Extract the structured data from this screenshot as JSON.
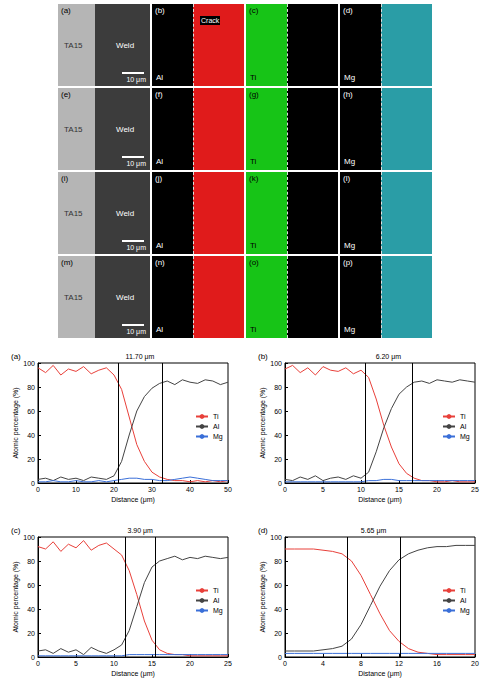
{
  "image_panels": {
    "rows": [
      [
        {
          "label": "(a)",
          "kind": "SEM",
          "left_text": "TA15",
          "right_text": "Weld",
          "scale_bar": "10 μm"
        },
        {
          "label": "(b)",
          "kind": "map",
          "element": "Al",
          "color": "#e01b1b",
          "side": "right",
          "annotation": "Crack"
        },
        {
          "label": "(c)",
          "kind": "map",
          "element": "Ti",
          "color": "#17c417",
          "side": "left"
        },
        {
          "label": "(d)",
          "kind": "map",
          "element": "Mg",
          "color": "#2a9da6",
          "side": "right"
        }
      ],
      [
        {
          "label": "(e)",
          "kind": "SEM",
          "left_text": "TA15",
          "right_text": "Weld",
          "scale_bar": "10 μm"
        },
        {
          "label": "(f)",
          "kind": "map",
          "element": "Al",
          "color": "#e01b1b",
          "side": "right"
        },
        {
          "label": "(g)",
          "kind": "map",
          "element": "Ti",
          "color": "#17c417",
          "side": "left"
        },
        {
          "label": "(h)",
          "kind": "map",
          "element": "Mg",
          "color": "#2a9da6",
          "side": "right"
        }
      ],
      [
        {
          "label": "(i)",
          "kind": "SEM",
          "left_text": "TA15",
          "right_text": "Weld",
          "scale_bar": "10 μm"
        },
        {
          "label": "(j)",
          "kind": "map",
          "element": "Al",
          "color": "#e01b1b",
          "side": "right"
        },
        {
          "label": "(k)",
          "kind": "map",
          "element": "Ti",
          "color": "#17c417",
          "side": "left"
        },
        {
          "label": "(l)",
          "kind": "map",
          "element": "Mg",
          "color": "#2a9da6",
          "side": "right"
        }
      ],
      [
        {
          "label": "(m)",
          "kind": "SEM",
          "left_text": "TA15",
          "right_text": "Weld",
          "scale_bar": "10 μm"
        },
        {
          "label": "(n)",
          "kind": "map",
          "element": "Al",
          "color": "#e01b1b",
          "side": "right"
        },
        {
          "label": "(o)",
          "kind": "map",
          "element": "Ti",
          "color": "#17c417",
          "side": "left"
        },
        {
          "label": "(p)",
          "kind": "map",
          "element": "Mg",
          "color": "#2a9da6",
          "side": "right"
        }
      ]
    ]
  },
  "chart_data": [
    {
      "type": "line",
      "title": "(a)",
      "xlabel": "Distance (μm)",
      "ylabel": "Atomic percentage (%)",
      "x": [
        0,
        2,
        4,
        6,
        8,
        10,
        12,
        14,
        16,
        18,
        20,
        22,
        24,
        26,
        28,
        30,
        32,
        34,
        36,
        38,
        40,
        42,
        44,
        46,
        48,
        50
      ],
      "series": [
        {
          "name": "Ti",
          "color": "#e8403a",
          "values": [
            96,
            92,
            98,
            90,
            95,
            93,
            97,
            91,
            94,
            96,
            90,
            78,
            55,
            32,
            18,
            9,
            5,
            3,
            2,
            2,
            1,
            2,
            1,
            2,
            1,
            2
          ]
        },
        {
          "name": "Al",
          "color": "#444444",
          "values": [
            3,
            4,
            2,
            5,
            3,
            4,
            2,
            5,
            4,
            3,
            6,
            18,
            40,
            60,
            72,
            79,
            83,
            85,
            82,
            86,
            84,
            83,
            86,
            85,
            82,
            84
          ]
        },
        {
          "name": "Mg",
          "color": "#3a6fd8",
          "values": [
            1,
            1,
            2,
            1,
            1,
            2,
            1,
            1,
            2,
            1,
            2,
            3,
            4,
            4,
            3,
            3,
            2,
            2,
            3,
            4,
            5,
            4,
            3,
            2,
            2,
            2
          ]
        }
      ],
      "xlim": [
        0,
        50
      ],
      "xticks": [
        0,
        10,
        20,
        30,
        40,
        50
      ],
      "ylim": [
        0,
        100
      ],
      "yticks": [
        0,
        20,
        40,
        60,
        80,
        100
      ],
      "grid": false,
      "legend": "right",
      "annotations": [
        {
          "text": "11.70 μm",
          "x": [
            21,
            32.7
          ]
        }
      ]
    },
    {
      "type": "line",
      "title": "(b)",
      "xlabel": "Distance (μm)",
      "ylabel": "Atomic percentage (%)",
      "x": [
        0,
        1,
        2,
        3,
        4,
        5,
        6,
        7,
        8,
        9,
        10,
        11,
        12,
        13,
        14,
        15,
        16,
        17,
        18,
        19,
        20,
        21,
        22,
        23,
        24,
        25
      ],
      "series": [
        {
          "name": "Ti",
          "color": "#e8403a",
          "values": [
            95,
            98,
            92,
            96,
            90,
            97,
            94,
            93,
            96,
            91,
            94,
            88,
            70,
            48,
            30,
            16,
            8,
            4,
            2,
            2,
            1,
            1,
            2,
            1,
            1,
            1
          ]
        },
        {
          "name": "Al",
          "color": "#444444",
          "values": [
            3,
            2,
            5,
            3,
            6,
            2,
            4,
            5,
            3,
            6,
            4,
            9,
            26,
            46,
            62,
            74,
            80,
            84,
            85,
            83,
            86,
            85,
            84,
            86,
            85,
            84
          ]
        },
        {
          "name": "Mg",
          "color": "#3a6fd8",
          "values": [
            1,
            1,
            1,
            1,
            1,
            1,
            1,
            1,
            1,
            1,
            1,
            2,
            2,
            3,
            3,
            2,
            2,
            2,
            2,
            2,
            2,
            2,
            2,
            2,
            2,
            2
          ]
        }
      ],
      "xlim": [
        0,
        25
      ],
      "xticks": [
        0,
        5,
        10,
        15,
        20,
        25
      ],
      "ylim": [
        0,
        100
      ],
      "yticks": [
        0,
        20,
        40,
        60,
        80,
        100
      ],
      "grid": false,
      "legend": "right",
      "annotations": [
        {
          "text": "6.20 μm",
          "x": [
            10.5,
            16.7
          ]
        }
      ]
    },
    {
      "type": "line",
      "title": "(c)",
      "xlabel": "Distance (μm)",
      "ylabel": "Atomic percentage (%)",
      "x": [
        0,
        1,
        2,
        3,
        4,
        5,
        6,
        7,
        8,
        9,
        10,
        11,
        12,
        13,
        14,
        15,
        16,
        17,
        18,
        19,
        20,
        21,
        22,
        23,
        24,
        25
      ],
      "series": [
        {
          "name": "Ti",
          "color": "#e8403a",
          "values": [
            92,
            90,
            96,
            88,
            94,
            91,
            97,
            89,
            93,
            95,
            90,
            85,
            72,
            52,
            30,
            14,
            6,
            3,
            2,
            2,
            1,
            1,
            1,
            1,
            1,
            1
          ]
        },
        {
          "name": "Al",
          "color": "#444444",
          "values": [
            5,
            6,
            3,
            7,
            4,
            6,
            2,
            8,
            5,
            3,
            6,
            10,
            22,
            42,
            62,
            75,
            80,
            82,
            84,
            81,
            83,
            82,
            84,
            83,
            82,
            83
          ]
        },
        {
          "name": "Mg",
          "color": "#3a6fd8",
          "values": [
            1,
            1,
            1,
            1,
            1,
            1,
            1,
            1,
            1,
            1,
            1,
            1,
            2,
            2,
            2,
            2,
            2,
            2,
            2,
            2,
            2,
            2,
            2,
            2,
            2,
            2
          ]
        }
      ],
      "xlim": [
        0,
        25
      ],
      "xticks": [
        0,
        5,
        10,
        15,
        20,
        25
      ],
      "ylim": [
        0,
        100
      ],
      "yticks": [
        0,
        20,
        40,
        60,
        80,
        100
      ],
      "grid": false,
      "legend": "right",
      "annotations": [
        {
          "text": "3.90 μm",
          "x": [
            11.5,
            15.4
          ]
        }
      ]
    },
    {
      "type": "line",
      "title": "(d)",
      "xlabel": "Distance (μm)",
      "ylabel": "Atomic percentage (%)",
      "x": [
        0,
        1,
        2,
        3,
        4,
        5,
        6,
        7,
        8,
        9,
        10,
        11,
        12,
        13,
        14,
        15,
        16,
        17,
        18,
        19,
        20
      ],
      "series": [
        {
          "name": "Ti",
          "color": "#e8403a",
          "values": [
            90,
            90,
            90,
            90,
            89,
            88,
            86,
            80,
            68,
            52,
            36,
            22,
            13,
            7,
            4,
            3,
            2,
            2,
            2,
            2,
            2
          ]
        },
        {
          "name": "Al",
          "color": "#444444",
          "values": [
            5,
            5,
            5,
            5,
            6,
            7,
            9,
            15,
            27,
            43,
            59,
            72,
            81,
            86,
            89,
            91,
            92,
            92,
            93,
            93,
            93
          ]
        },
        {
          "name": "Mg",
          "color": "#3a6fd8",
          "values": [
            3,
            3,
            3,
            3,
            3,
            3,
            3,
            3,
            3,
            3,
            3,
            3,
            3,
            3,
            3,
            3,
            3,
            3,
            3,
            3,
            3
          ]
        }
      ],
      "xlim": [
        0,
        20
      ],
      "xticks": [
        0,
        4,
        8,
        12,
        16,
        20
      ],
      "ylim": [
        0,
        100
      ],
      "yticks": [
        0,
        20,
        40,
        60,
        80,
        100
      ],
      "grid": false,
      "legend": "right",
      "annotations": [
        {
          "text": "5.65 μm",
          "x": [
            6.5,
            12.15
          ]
        }
      ]
    }
  ]
}
